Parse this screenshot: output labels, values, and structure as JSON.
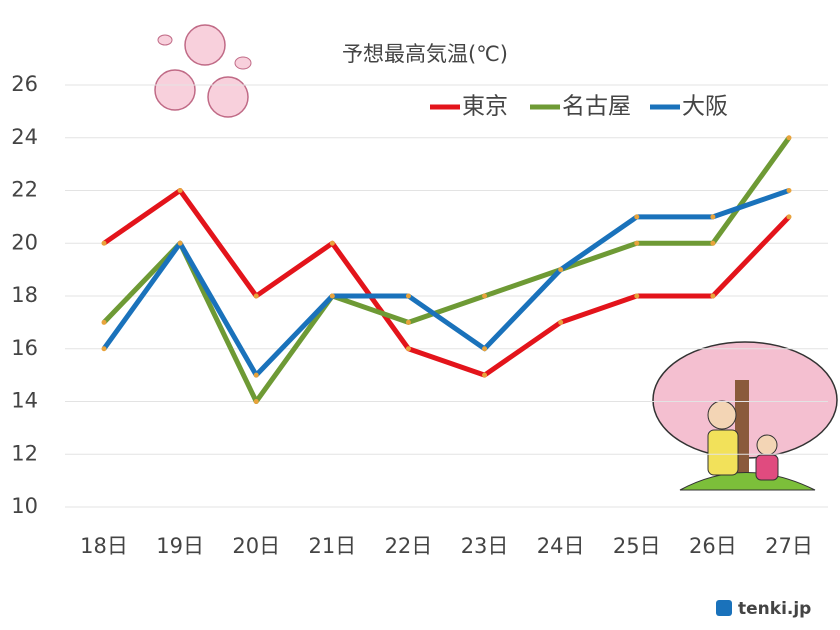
{
  "chart_data": {
    "type": "line",
    "title": "予想最高気温(℃)",
    "categories": [
      "18日",
      "19日",
      "20日",
      "21日",
      "22日",
      "23日",
      "24日",
      "25日",
      "26日",
      "27日"
    ],
    "series": [
      {
        "name": "東京",
        "color": "#e3141b",
        "values": [
          20,
          22,
          18,
          20,
          16,
          15,
          17,
          18,
          18,
          21
        ]
      },
      {
        "name": "名古屋",
        "color": "#6e9a35",
        "values": [
          17,
          20,
          14,
          18,
          17,
          18,
          19,
          20,
          20,
          24
        ]
      },
      {
        "name": "大阪",
        "color": "#1a72bb",
        "values": [
          16,
          20,
          15,
          18,
          18,
          16,
          19,
          21,
          21,
          22
        ]
      }
    ],
    "ylim": [
      10,
      26
    ],
    "yticks": [
      10,
      12,
      14,
      16,
      18,
      20,
      22,
      24,
      26
    ],
    "grid": true,
    "legend": "top-right",
    "source": "tenki.jp"
  }
}
